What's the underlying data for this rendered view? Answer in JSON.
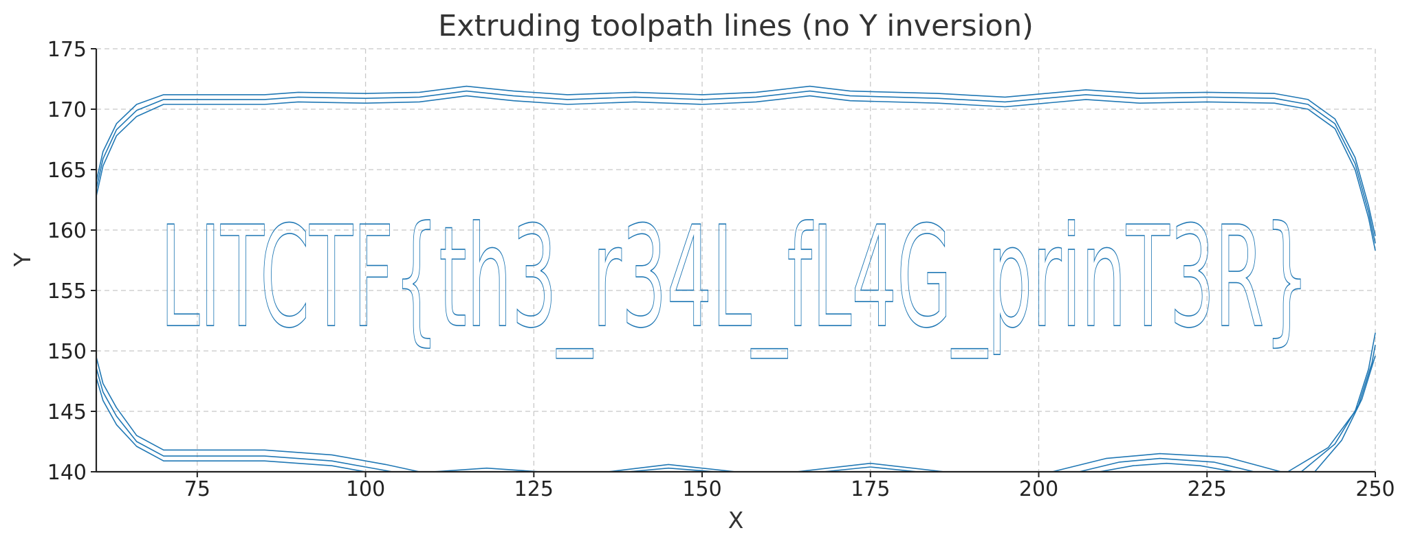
{
  "chart_data": {
    "type": "line",
    "title": "Extruding toolpath lines (no Y inversion)",
    "xlabel": "X",
    "ylabel": "Y",
    "xlim": [
      60,
      250
    ],
    "ylim": [
      140,
      175
    ],
    "xticks": [
      75,
      100,
      125,
      150,
      175,
      200,
      225,
      250
    ],
    "yticks": [
      140,
      145,
      150,
      155,
      160,
      165,
      170,
      175
    ],
    "grid": true,
    "color": "#1f77b4",
    "plotted_text": "LITCTF{th3_r34L_fL4G_prinT3R}",
    "plotted_text_extent": {
      "x": [
        69.5,
        240.2
      ],
      "y": [
        149.5,
        160.8
      ]
    },
    "series": [
      {
        "points": [
          [
            60,
            164
          ],
          [
            61,
            166.5
          ],
          [
            63,
            168.8
          ],
          [
            66,
            170.4
          ],
          [
            70,
            171.2
          ],
          [
            85,
            171.2
          ],
          [
            90,
            171.4
          ],
          [
            100,
            171.3
          ],
          [
            108,
            171.4
          ],
          [
            115,
            171.9
          ],
          [
            122,
            171.5
          ],
          [
            130,
            171.2
          ],
          [
            140,
            171.4
          ],
          [
            150,
            171.2
          ],
          [
            158,
            171.4
          ],
          [
            166,
            171.9
          ],
          [
            172,
            171.5
          ],
          [
            185,
            171.3
          ],
          [
            195,
            171.0
          ],
          [
            207,
            171.6
          ],
          [
            215,
            171.3
          ],
          [
            225,
            171.4
          ],
          [
            235,
            171.3
          ],
          [
            240,
            170.8
          ],
          [
            244,
            169.2
          ],
          [
            247,
            166
          ],
          [
            249,
            162
          ],
          [
            250,
            159.5
          ]
        ]
      },
      {
        "points": [
          [
            60,
            163.4
          ],
          [
            61,
            165.9
          ],
          [
            63,
            168.3
          ],
          [
            66,
            169.9
          ],
          [
            70,
            170.8
          ],
          [
            85,
            170.8
          ],
          [
            90,
            171.0
          ],
          [
            100,
            170.9
          ],
          [
            108,
            171.0
          ],
          [
            115,
            171.5
          ],
          [
            122,
            171.1
          ],
          [
            130,
            170.8
          ],
          [
            140,
            171.0
          ],
          [
            150,
            170.8
          ],
          [
            158,
            171.0
          ],
          [
            166,
            171.5
          ],
          [
            172,
            171.1
          ],
          [
            185,
            170.9
          ],
          [
            195,
            170.6
          ],
          [
            207,
            171.2
          ],
          [
            215,
            170.9
          ],
          [
            225,
            171.0
          ],
          [
            235,
            170.9
          ],
          [
            240,
            170.4
          ],
          [
            244,
            168.8
          ],
          [
            247,
            165.5
          ],
          [
            249,
            161.5
          ],
          [
            250,
            158.9
          ]
        ]
      },
      {
        "points": [
          [
            60,
            162.8
          ],
          [
            61,
            165.3
          ],
          [
            63,
            167.8
          ],
          [
            66,
            169.4
          ],
          [
            70,
            170.4
          ],
          [
            85,
            170.4
          ],
          [
            90,
            170.6
          ],
          [
            100,
            170.5
          ],
          [
            108,
            170.6
          ],
          [
            115,
            171.1
          ],
          [
            122,
            170.7
          ],
          [
            130,
            170.4
          ],
          [
            140,
            170.6
          ],
          [
            150,
            170.4
          ],
          [
            158,
            170.6
          ],
          [
            166,
            171.1
          ],
          [
            172,
            170.7
          ],
          [
            185,
            170.5
          ],
          [
            195,
            170.2
          ],
          [
            207,
            170.8
          ],
          [
            215,
            170.5
          ],
          [
            225,
            170.6
          ],
          [
            235,
            170.5
          ],
          [
            240,
            170.0
          ],
          [
            244,
            168.4
          ],
          [
            247,
            165.0
          ],
          [
            249,
            161.0
          ],
          [
            250,
            158.3
          ]
        ]
      },
      {
        "points": [
          [
            60,
            149.5
          ],
          [
            61,
            147.3
          ],
          [
            63,
            145.3
          ],
          [
            66,
            143.0
          ],
          [
            70,
            141.8
          ],
          [
            85,
            141.8
          ],
          [
            95,
            141.4
          ],
          [
            103,
            140.6
          ],
          [
            108,
            140.0
          ]
        ]
      },
      {
        "points": [
          [
            60,
            148.6
          ],
          [
            61,
            146.6
          ],
          [
            63,
            144.6
          ],
          [
            66,
            142.5
          ],
          [
            70,
            141.3
          ],
          [
            85,
            141.3
          ],
          [
            95,
            140.9
          ],
          [
            102,
            140.2
          ],
          [
            104,
            140.0
          ]
        ]
      },
      {
        "points": [
          [
            60,
            147.8
          ],
          [
            61,
            145.9
          ],
          [
            63,
            143.9
          ],
          [
            66,
            142.1
          ],
          [
            70,
            140.9
          ],
          [
            85,
            140.9
          ],
          [
            95,
            140.5
          ],
          [
            100,
            140.0
          ]
        ]
      },
      {
        "points": [
          [
            110,
            140.0
          ],
          [
            118,
            140.3
          ],
          [
            126,
            140.0
          ]
        ]
      },
      {
        "points": [
          [
            136,
            140.0
          ],
          [
            145,
            140.6
          ],
          [
            155,
            140.0
          ]
        ]
      },
      {
        "points": [
          [
            139,
            140.0
          ],
          [
            145,
            140.3
          ],
          [
            152,
            140.0
          ]
        ]
      },
      {
        "points": [
          [
            164,
            140.0
          ],
          [
            175,
            140.7
          ],
          [
            186,
            140.0
          ]
        ]
      },
      {
        "points": [
          [
            168,
            140.0
          ],
          [
            175,
            140.4
          ],
          [
            182,
            140.0
          ]
        ]
      },
      {
        "points": [
          [
            202,
            140.0
          ],
          [
            210,
            141.1
          ],
          [
            218,
            141.5
          ],
          [
            228,
            141.2
          ],
          [
            236,
            140.0
          ]
        ]
      },
      {
        "points": [
          [
            206,
            140.0
          ],
          [
            212,
            140.8
          ],
          [
            218,
            141.1
          ],
          [
            226,
            140.8
          ],
          [
            232,
            140.0
          ]
        ]
      },
      {
        "points": [
          [
            209,
            140.0
          ],
          [
            214,
            140.5
          ],
          [
            219,
            140.7
          ],
          [
            224,
            140.5
          ],
          [
            229,
            140.0
          ]
        ]
      },
      {
        "points": [
          [
            237,
            140.0
          ],
          [
            243,
            142.0
          ],
          [
            247,
            145.0
          ],
          [
            249,
            148.5
          ],
          [
            250,
            151.5
          ]
        ]
      },
      {
        "points": [
          [
            239,
            140.0
          ],
          [
            244,
            142.3
          ],
          [
            247.5,
            145.5
          ],
          [
            249.5,
            149.0
          ],
          [
            250,
            150.5
          ]
        ]
      },
      {
        "points": [
          [
            241,
            140.0
          ],
          [
            245,
            142.6
          ],
          [
            248,
            146.0
          ],
          [
            250,
            149.6
          ]
        ]
      }
    ]
  }
}
